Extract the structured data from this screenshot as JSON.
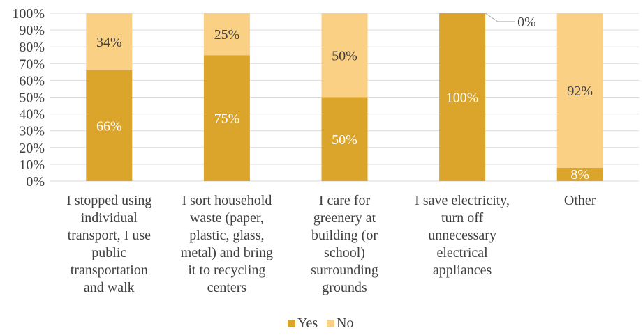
{
  "chart_data": {
    "type": "bar",
    "stacked": true,
    "percent_stacked": true,
    "categories": [
      [
        "I stopped using",
        "individual",
        "transport, I use",
        "public",
        "transportation",
        "and walk"
      ],
      [
        "I sort household",
        "waste (paper,",
        "plastic, glass,",
        "metal) and bring",
        "it to recycling",
        "centers"
      ],
      [
        "I care for",
        "greenery at",
        "building (or",
        "school)",
        "surrounding",
        "grounds"
      ],
      [
        "I save electricity,",
        "turn off",
        "unnecessary",
        "electrical",
        "appliances"
      ],
      [
        "Other"
      ]
    ],
    "series": [
      {
        "name": "Yes",
        "values": [
          66,
          75,
          50,
          100,
          8
        ],
        "labels": [
          "66%",
          "75%",
          "50%",
          "100%",
          "8%"
        ],
        "color": "#DAA52A"
      },
      {
        "name": "No",
        "values": [
          34,
          25,
          50,
          0,
          92
        ],
        "labels": [
          "34%",
          "25%",
          "50%",
          "0%",
          "92%"
        ],
        "color": "#FAD184"
      }
    ],
    "ylim": [
      0,
      100
    ],
    "yticks": [
      "0%",
      "10%",
      "20%",
      "30%",
      "40%",
      "50%",
      "60%",
      "70%",
      "80%",
      "90%",
      "100%"
    ],
    "grid": true,
    "legend": "bottom",
    "xlabel": "",
    "ylabel": ""
  }
}
